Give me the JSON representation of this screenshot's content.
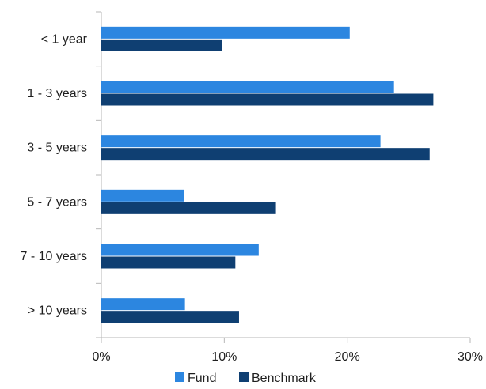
{
  "chart_data": {
    "type": "bar",
    "orientation": "horizontal",
    "categories": [
      "< 1 year",
      "1 - 3 years",
      "3 - 5 years",
      "5 - 7 years",
      "7 - 10 years",
      "> 10 years"
    ],
    "series": [
      {
        "name": "Fund",
        "values": [
          20.2,
          23.8,
          22.7,
          6.7,
          12.8,
          6.8
        ],
        "color": "#2c86e0"
      },
      {
        "name": "Benchmark",
        "values": [
          9.8,
          27.0,
          26.7,
          14.2,
          10.9,
          11.2
        ],
        "color": "#0f3f72"
      }
    ],
    "xlim": [
      0,
      30
    ],
    "xticks": [
      "0%",
      "10%",
      "20%",
      "30%"
    ],
    "grid": false,
    "legend": {
      "position": "bottom",
      "items": [
        "Fund",
        "Benchmark"
      ]
    },
    "title": "",
    "xlabel": "",
    "ylabel": ""
  }
}
